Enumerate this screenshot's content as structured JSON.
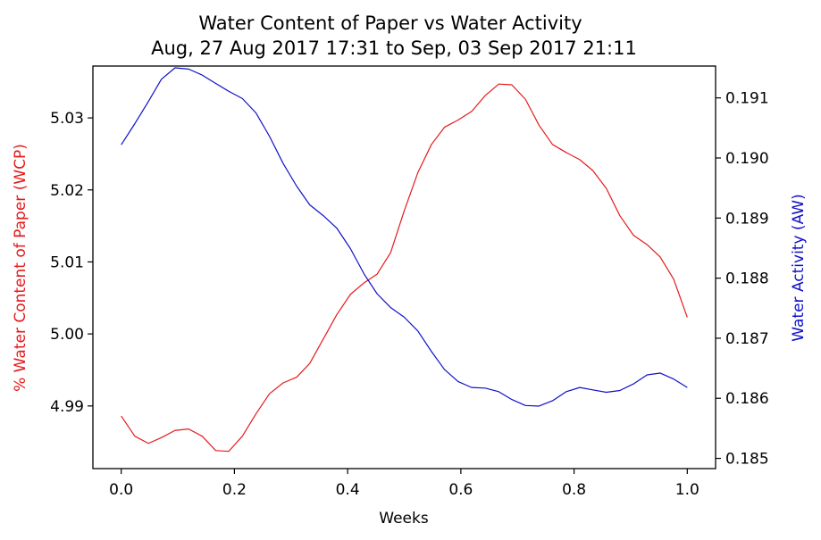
{
  "chart_data": {
    "type": "line",
    "title": "Water Content of Paper vs Water Activity",
    "subtitle": "Aug, 27 Aug 2017 17:31 to Sep, 03 Sep 2017 21:11",
    "xlabel": "Weeks",
    "xlim": [
      -0.05,
      1.05
    ],
    "x_ticks": [
      "0.0",
      "0.2",
      "0.4",
      "0.6",
      "0.8",
      "1.0"
    ],
    "grid": false,
    "axes": {
      "left": {
        "label": "% Water Content of Paper (WCP)",
        "color": "#e41a1c",
        "ylim": [
          4.9813,
          5.0372
        ],
        "ticks": [
          "4.99",
          "5.00",
          "5.01",
          "5.02",
          "5.03"
        ]
      },
      "right": {
        "label": "Water Activity (AW)",
        "color": "#1010c8",
        "ylim": [
          0.18483,
          0.19153
        ],
        "ticks": [
          "0.185",
          "0.186",
          "0.187",
          "0.188",
          "0.189",
          "0.190",
          "0.191"
        ]
      }
    },
    "x": [
      0.0,
      0.024,
      0.048,
      0.071,
      0.095,
      0.119,
      0.143,
      0.167,
      0.19,
      0.214,
      0.238,
      0.262,
      0.286,
      0.31,
      0.333,
      0.357,
      0.381,
      0.405,
      0.429,
      0.452,
      0.476,
      0.5,
      0.524,
      0.548,
      0.571,
      0.595,
      0.619,
      0.643,
      0.667,
      0.69,
      0.714,
      0.738,
      0.762,
      0.786,
      0.81,
      0.833,
      0.857,
      0.881,
      0.905,
      0.929,
      0.952,
      0.976,
      1.0
    ],
    "series": [
      {
        "name": "% Water Content of Paper (WCP)",
        "axis": "left",
        "color": "#e41a1c",
        "values": [
          4.9886,
          4.9858,
          4.9848,
          4.9856,
          4.9866,
          4.9868,
          4.9858,
          4.9838,
          4.9837,
          4.9858,
          4.9889,
          4.9917,
          4.9932,
          4.994,
          4.9959,
          4.9993,
          5.0027,
          5.0055,
          5.0071,
          5.0083,
          5.0113,
          5.0171,
          5.0224,
          5.0263,
          5.0287,
          5.0297,
          5.0309,
          5.0331,
          5.0347,
          5.0346,
          5.0326,
          5.029,
          5.0263,
          5.0252,
          5.0242,
          5.0227,
          5.0202,
          5.0164,
          5.0137,
          5.0124,
          5.0107,
          5.0076,
          5.0023
        ]
      },
      {
        "name": "Water Activity (AW)",
        "axis": "right",
        "color": "#1010c8",
        "values": [
          0.19022,
          0.19057,
          0.19094,
          0.19131,
          0.1915,
          0.19148,
          0.19138,
          0.19124,
          0.19111,
          0.19099,
          0.19075,
          0.19036,
          0.18991,
          0.18953,
          0.18922,
          0.18904,
          0.18883,
          0.18849,
          0.18807,
          0.18774,
          0.18751,
          0.18735,
          0.18712,
          0.18678,
          0.18648,
          0.18628,
          0.18618,
          0.18617,
          0.18611,
          0.18598,
          0.18588,
          0.18587,
          0.18596,
          0.18611,
          0.18618,
          0.18614,
          0.1861,
          0.18613,
          0.18624,
          0.18639,
          0.18642,
          0.18632,
          0.18618
        ]
      }
    ]
  }
}
